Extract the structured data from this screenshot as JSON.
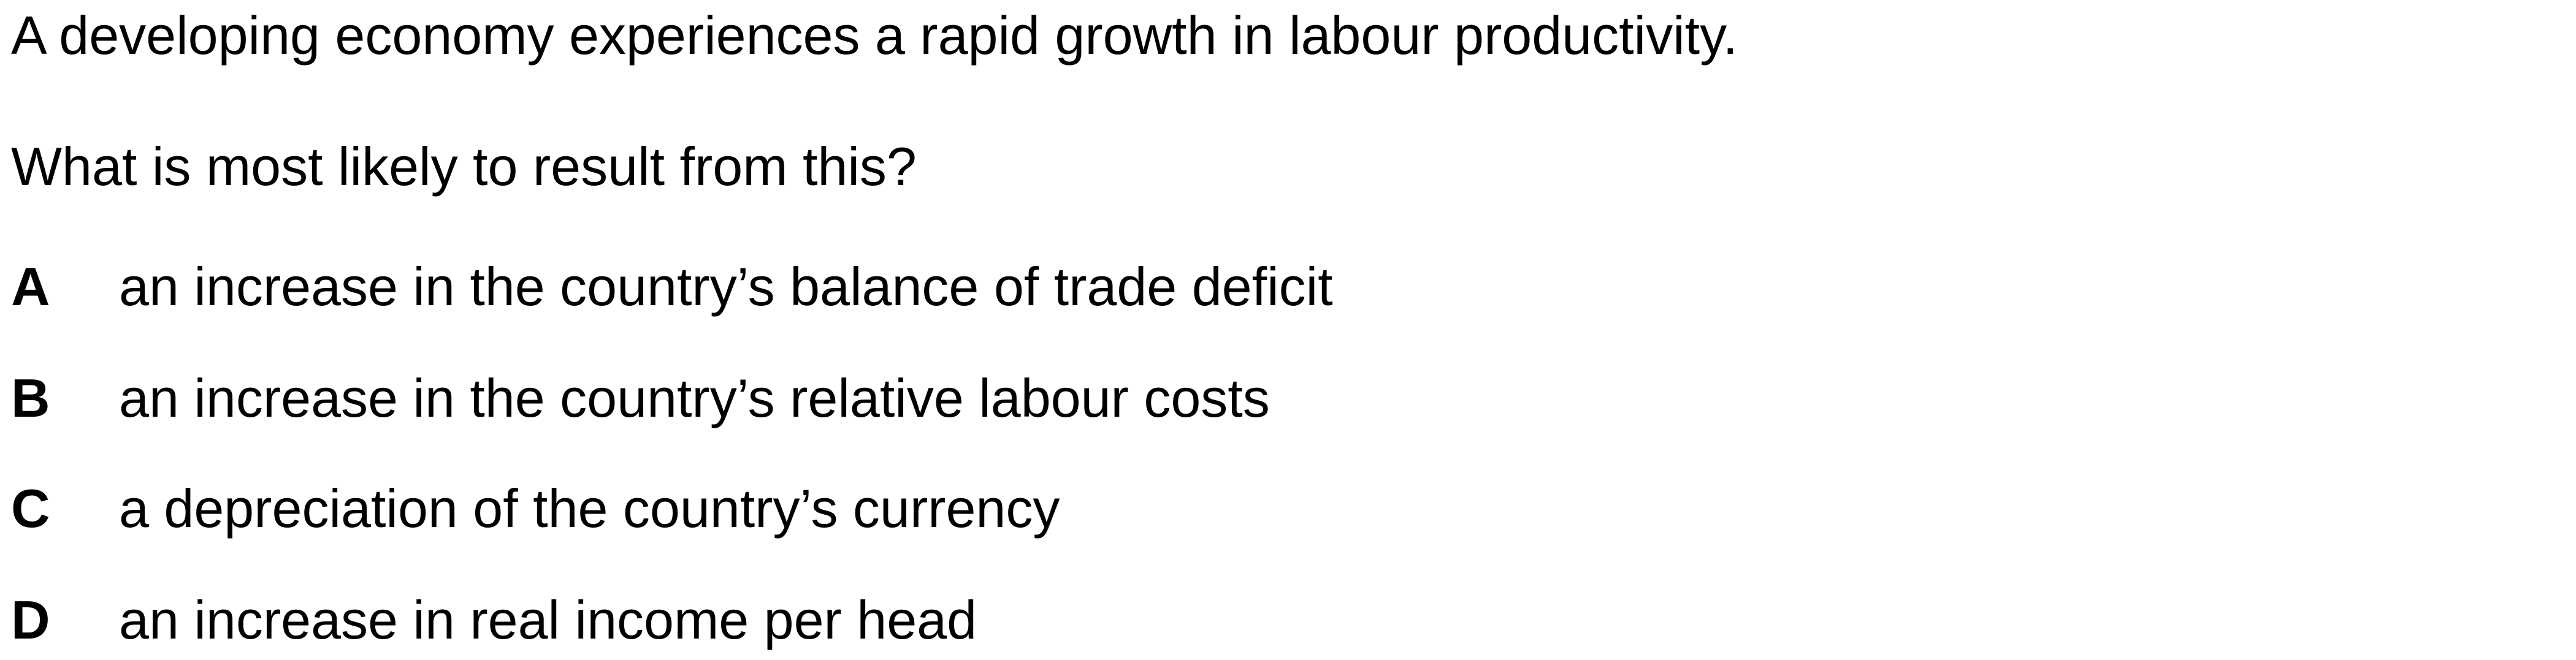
{
  "question": {
    "stem": "A developing economy experiences a rapid growth in labour productivity.",
    "prompt": "What is most likely to result from this?",
    "options": [
      {
        "letter": "A",
        "text": "an increase in the country’s balance of trade deficit"
      },
      {
        "letter": "B",
        "text": "an increase in the country’s relative labour costs"
      },
      {
        "letter": "C",
        "text": "a depreciation of the country’s currency"
      },
      {
        "letter": "D",
        "text": "an increase in real income per head"
      }
    ]
  }
}
